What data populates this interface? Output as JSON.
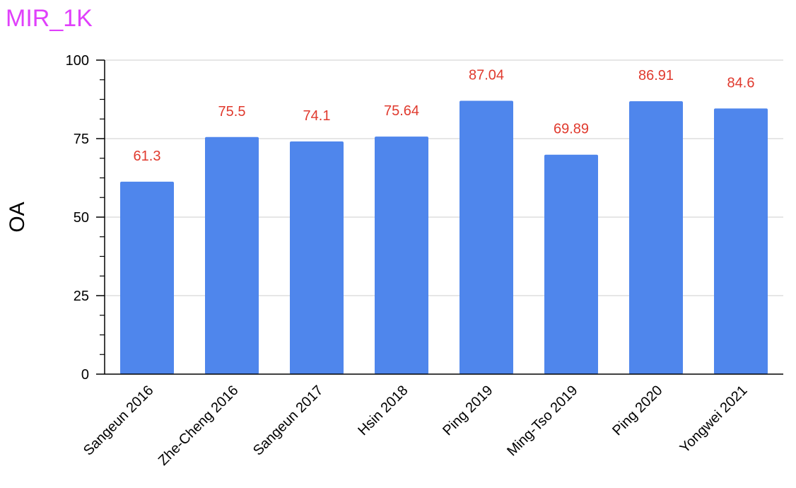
{
  "colors": {
    "title": "#e040fb",
    "bar": "#4f86ec",
    "data_label": "#e03a2e",
    "grid": "#cccccc",
    "axis": "#000000"
  },
  "chart_data": {
    "type": "bar",
    "title": "MIR_1K",
    "xlabel": "",
    "ylabel": "OA",
    "categories": [
      "Sangeun 2016",
      "Zhe-Cheng 2016",
      "Sangeun 2017",
      "Hsin 2018",
      "Ping 2019",
      "Ming-Tso 2019",
      "Ping 2020",
      "Yongwei 2021"
    ],
    "values": [
      61.3,
      75.5,
      74.1,
      75.64,
      87.04,
      69.89,
      86.91,
      84.6
    ],
    "value_labels": [
      "61.3",
      "75.5",
      "74.1",
      "75.64",
      "87.04",
      "69.89",
      "86.91",
      "84.6"
    ],
    "ylim": [
      0,
      100
    ],
    "yticks": [
      0,
      25,
      50,
      75,
      100
    ],
    "ytick_labels": [
      "0",
      "25",
      "50",
      "75",
      "100"
    ],
    "grid": true,
    "legend": "none"
  }
}
